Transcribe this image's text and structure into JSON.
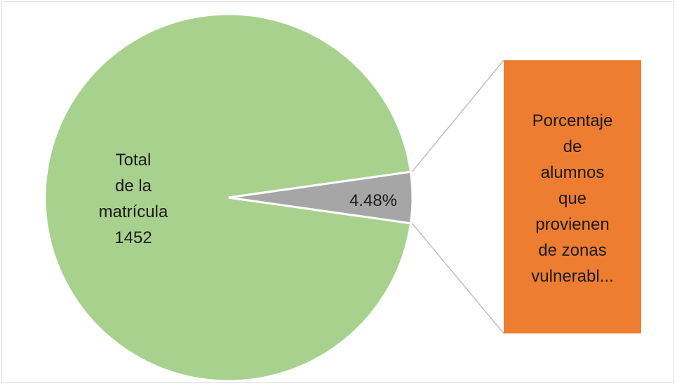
{
  "chart_data": {
    "type": "pie",
    "subtype": "pie-of-pie",
    "slices": [
      {
        "label_lines": [
          "Total",
          "de la",
          "matrícula",
          "1452"
        ],
        "value_percent": 95.52,
        "color": "#a9d18e"
      },
      {
        "label_lines": [
          "4.48%"
        ],
        "value_percent": 4.48,
        "color": "#a6a6a6"
      }
    ],
    "secondary_bar": {
      "label_lines": [
        "Porcentaje",
        "de",
        "alumnos",
        "que",
        "provienen",
        "de zonas",
        "vulnerabl..."
      ],
      "color": "#ed7d31"
    },
    "connector_color": "#bfbfbf",
    "legend": "none"
  }
}
